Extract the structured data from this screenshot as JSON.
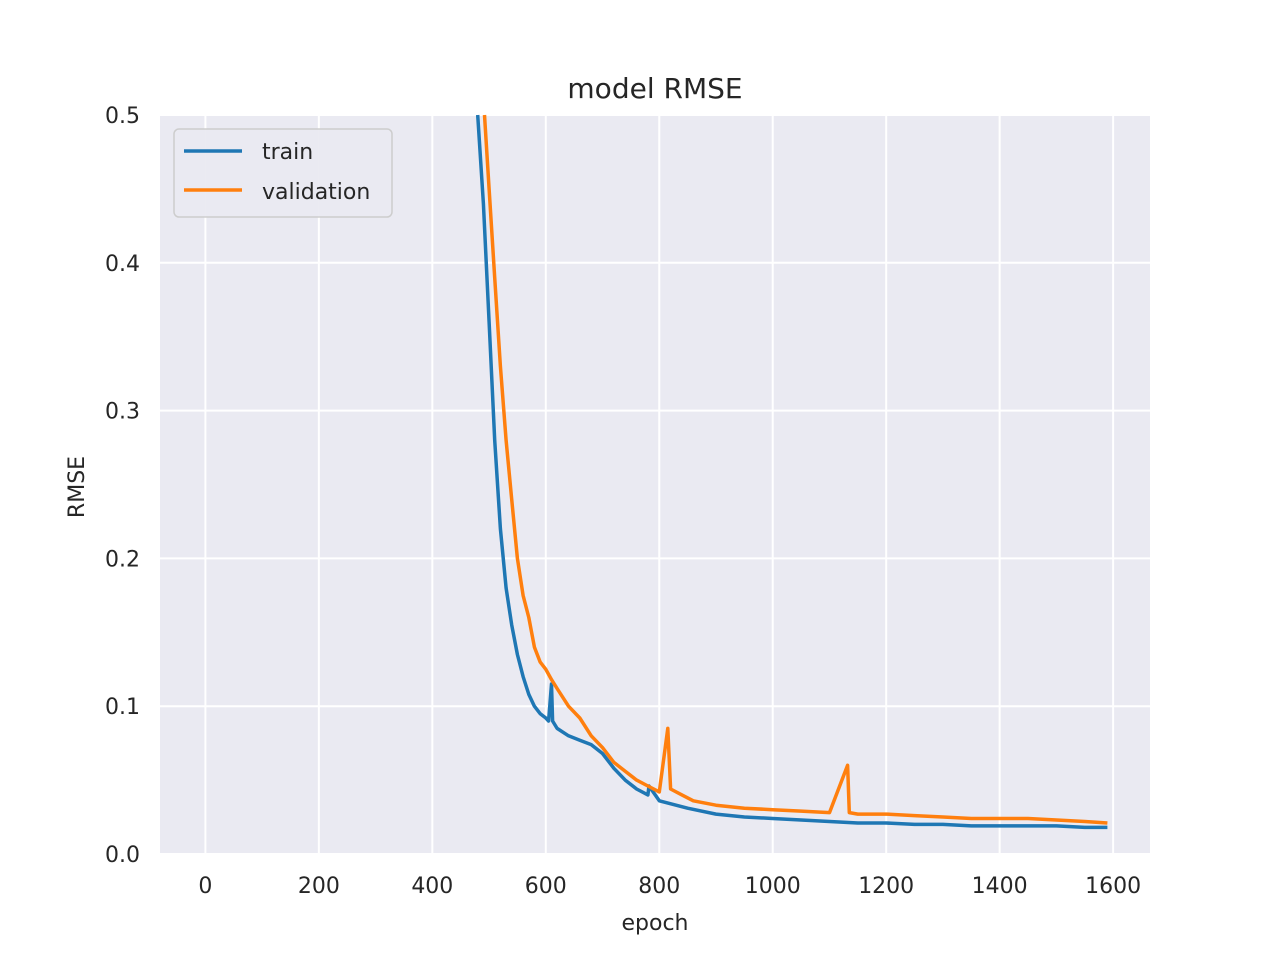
{
  "chart_data": {
    "type": "line",
    "title": "model RMSE",
    "xlabel": "epoch",
    "ylabel": "RMSE",
    "xlim": [
      -80,
      1665
    ],
    "ylim": [
      0.0,
      0.5
    ],
    "xticks": [
      0,
      200,
      400,
      600,
      800,
      1000,
      1200,
      1400,
      1600
    ],
    "xtick_labels": [
      "0",
      "200",
      "400",
      "600",
      "800",
      "1000",
      "1200",
      "1400",
      "1600"
    ],
    "yticks": [
      0.0,
      0.1,
      0.2,
      0.3,
      0.4,
      0.5
    ],
    "ytick_labels": [
      "0.0",
      "0.1",
      "0.2",
      "0.3",
      "0.4",
      "0.5"
    ],
    "grid": true,
    "background": "#EAEAF2",
    "legend_position": "top-left",
    "series": [
      {
        "name": "train",
        "color": "#1f77b4",
        "x": [
          480,
          490,
          500,
          510,
          520,
          530,
          540,
          550,
          560,
          570,
          580,
          590,
          600,
          605,
          610,
          612,
          620,
          640,
          660,
          680,
          700,
          720,
          740,
          760,
          780,
          782,
          800,
          850,
          900,
          950,
          1000,
          1050,
          1100,
          1150,
          1200,
          1250,
          1300,
          1350,
          1400,
          1450,
          1500,
          1550,
          1590
        ],
        "y": [
          0.5,
          0.44,
          0.36,
          0.28,
          0.22,
          0.18,
          0.155,
          0.135,
          0.12,
          0.108,
          0.1,
          0.095,
          0.092,
          0.09,
          0.115,
          0.09,
          0.085,
          0.08,
          0.077,
          0.074,
          0.068,
          0.058,
          0.05,
          0.044,
          0.04,
          0.046,
          0.036,
          0.031,
          0.027,
          0.025,
          0.024,
          0.023,
          0.022,
          0.021,
          0.021,
          0.02,
          0.02,
          0.019,
          0.019,
          0.019,
          0.019,
          0.018,
          0.018
        ]
      },
      {
        "name": "validation",
        "color": "#ff7f0e",
        "x": [
          492,
          500,
          510,
          520,
          530,
          540,
          550,
          560,
          570,
          575,
          580,
          590,
          600,
          610,
          620,
          640,
          660,
          680,
          700,
          720,
          740,
          760,
          780,
          800,
          815,
          820,
          840,
          860,
          900,
          950,
          1000,
          1050,
          1100,
          1132,
          1135,
          1150,
          1200,
          1250,
          1300,
          1350,
          1400,
          1450,
          1500,
          1550,
          1590
        ],
        "y": [
          0.5,
          0.45,
          0.39,
          0.33,
          0.28,
          0.24,
          0.2,
          0.175,
          0.16,
          0.15,
          0.14,
          0.13,
          0.125,
          0.118,
          0.112,
          0.1,
          0.092,
          0.08,
          0.072,
          0.062,
          0.056,
          0.05,
          0.046,
          0.042,
          0.085,
          0.044,
          0.04,
          0.036,
          0.033,
          0.031,
          0.03,
          0.029,
          0.028,
          0.06,
          0.028,
          0.027,
          0.027,
          0.026,
          0.025,
          0.024,
          0.024,
          0.024,
          0.023,
          0.022,
          0.021
        ]
      }
    ]
  }
}
